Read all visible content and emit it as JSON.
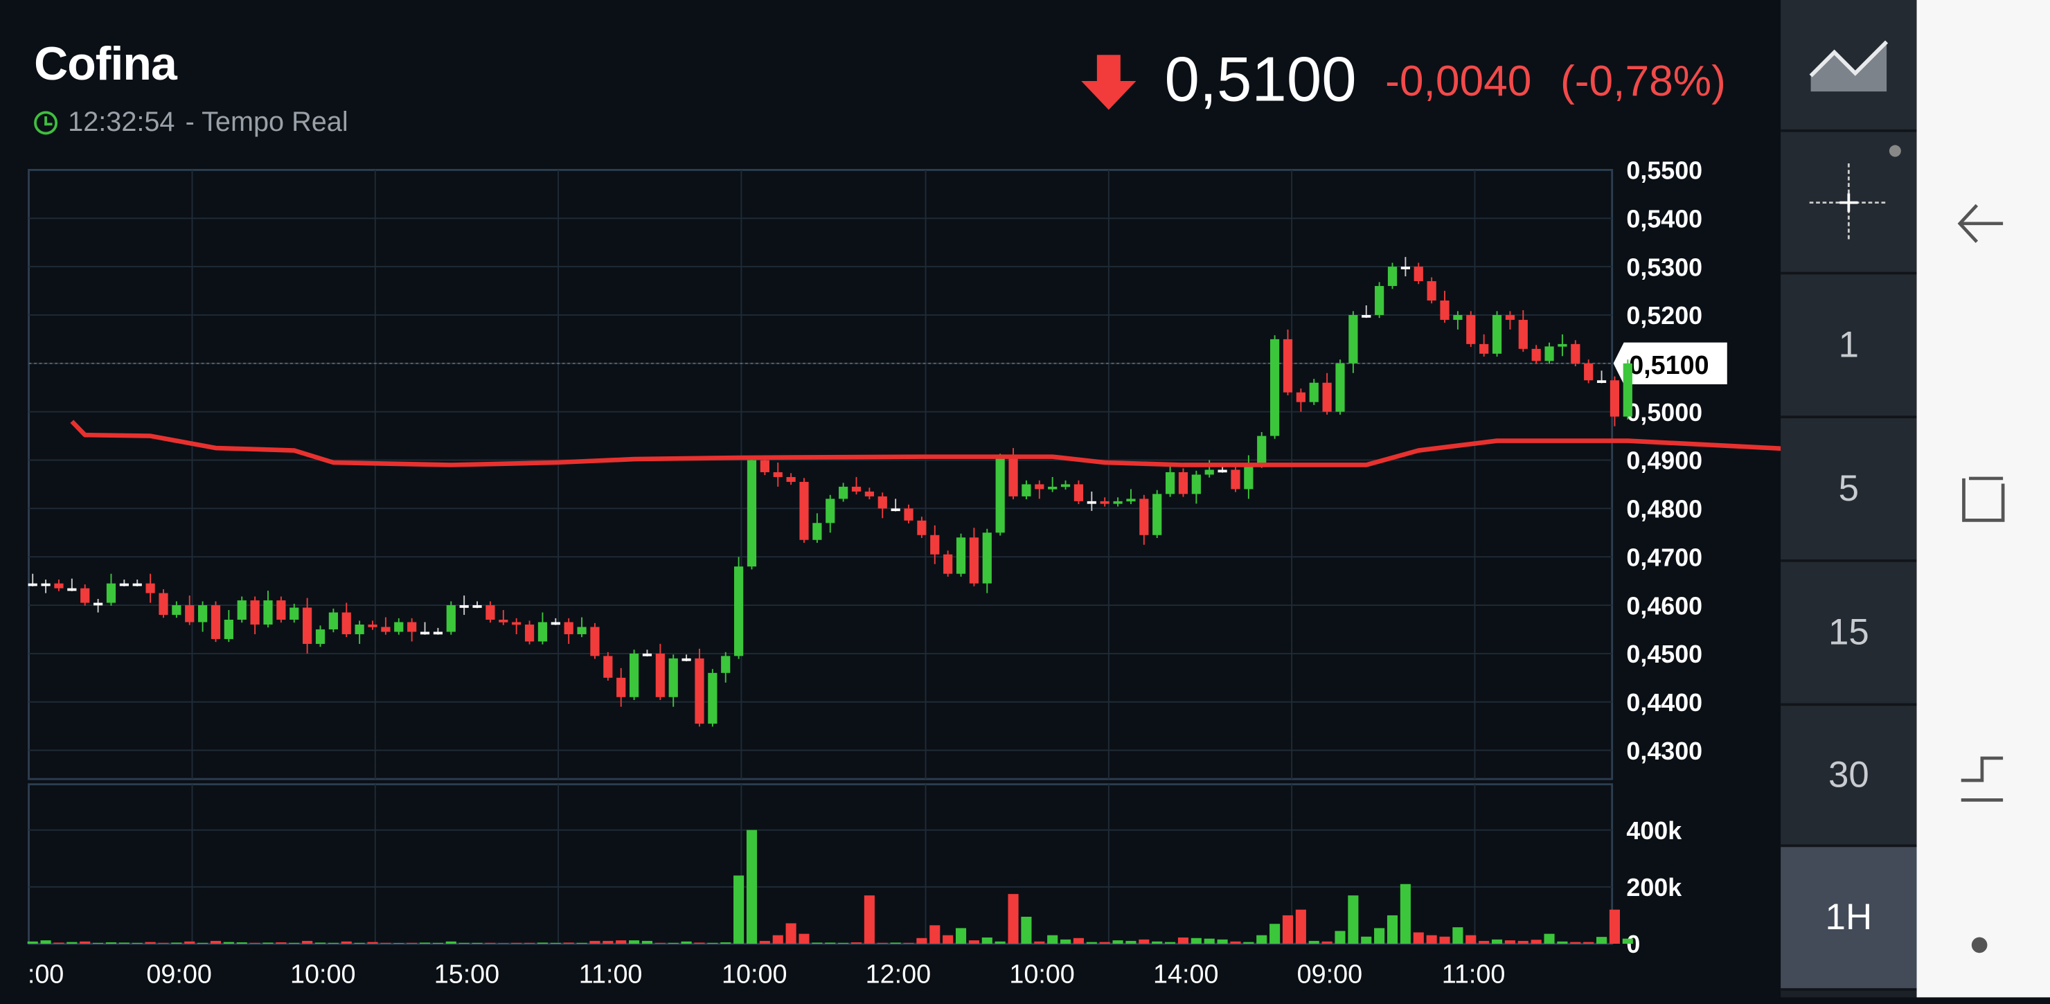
{
  "header": {
    "title": "Cofina",
    "time": "12:32:54",
    "realtime_label": "- Tempo Real",
    "price": "0,5100",
    "change": "-0,0040",
    "change_pct": "(-0,78%)",
    "direction": "down"
  },
  "colors": {
    "up": "#3cc63c",
    "down": "#f23b3b",
    "ma": "#e8312f",
    "background": "#0b1016",
    "grid": "#1f2b36"
  },
  "timeframes": [
    "1",
    "5",
    "15",
    "30",
    "1H"
  ],
  "selected_timeframe": "1H",
  "sidebar_icons": [
    "area-chart-icon",
    "crosshair-icon"
  ],
  "chart_data": [
    {
      "type": "candlestick",
      "ylim": [
        0.43,
        0.55
      ],
      "yticks": [
        "0,5500",
        "0,5400",
        "0,5300",
        "0,5200",
        "0,5100",
        "0,5000",
        "0,4900",
        "0,4800",
        "0,4700",
        "0,4600",
        "0,4500",
        "0,4400",
        "0,4300"
      ],
      "ytick_values": [
        0.55,
        0.54,
        0.53,
        0.52,
        0.51,
        0.5,
        0.49,
        0.48,
        0.47,
        0.46,
        0.45,
        0.44,
        0.43
      ],
      "last_price_label": "0,5100",
      "last_price": 0.51,
      "xticks": [
        ":00",
        "09:00",
        "10:00",
        "15:00",
        "11:00",
        "10:00",
        "12:00",
        "10:00",
        "14:00",
        "09:00",
        "11:00"
      ],
      "closes": [
        0.4645,
        0.4645,
        0.4635,
        0.4635,
        0.4605,
        0.4605,
        0.4645,
        0.4645,
        0.4645,
        0.4625,
        0.458,
        0.46,
        0.4565,
        0.46,
        0.453,
        0.457,
        0.461,
        0.456,
        0.461,
        0.457,
        0.4595,
        0.452,
        0.455,
        0.4585,
        0.454,
        0.456,
        0.4555,
        0.4545,
        0.4565,
        0.4545,
        0.4545,
        0.4545,
        0.46,
        0.46,
        0.46,
        0.457,
        0.4565,
        0.456,
        0.4525,
        0.4565,
        0.4565,
        0.454,
        0.4555,
        0.4495,
        0.445,
        0.441,
        0.45,
        0.45,
        0.441,
        0.449,
        0.449,
        0.4355,
        0.446,
        0.4495,
        0.468,
        0.49,
        0.4875,
        0.4865,
        0.4855,
        0.4735,
        0.477,
        0.482,
        0.4845,
        0.4835,
        0.4825,
        0.48,
        0.48,
        0.4775,
        0.4745,
        0.4705,
        0.4665,
        0.474,
        0.4645,
        0.475,
        0.4905,
        0.4825,
        0.485,
        0.484,
        0.4845,
        0.485,
        0.4815,
        0.4815,
        0.481,
        0.4815,
        0.482,
        0.4745,
        0.483,
        0.4875,
        0.483,
        0.487,
        0.488,
        0.488,
        0.484,
        0.489,
        0.495,
        0.515,
        0.504,
        0.502,
        0.506,
        0.5,
        0.51,
        0.52,
        0.52,
        0.526,
        0.53,
        0.53,
        0.527,
        0.523,
        0.519,
        0.52,
        0.514,
        0.512,
        0.52,
        0.519,
        0.513,
        0.5105,
        0.5135,
        0.514,
        0.51,
        0.5065,
        0.5065,
        0.499,
        0.51
      ],
      "moving_average": [
        [
          3,
          0.498
        ],
        [
          4,
          0.4952
        ],
        [
          9,
          0.495
        ],
        [
          14,
          0.4925
        ],
        [
          20,
          0.492
        ],
        [
          23,
          0.4895
        ],
        [
          32,
          0.489
        ],
        [
          40,
          0.4895
        ],
        [
          46,
          0.4902
        ],
        [
          54,
          0.4905
        ],
        [
          68,
          0.4907
        ],
        [
          78,
          0.4907
        ],
        [
          82,
          0.4895
        ],
        [
          88,
          0.489
        ],
        [
          102,
          0.489
        ],
        [
          106,
          0.492
        ],
        [
          112,
          0.494
        ],
        [
          122,
          0.494
        ],
        [
          133,
          0.4925
        ],
        [
          140,
          0.4915
        ]
      ]
    },
    {
      "type": "bar",
      "ylim": [
        0,
        460000
      ],
      "yticks": [
        "400k",
        "200k",
        "0"
      ],
      "ytick_values": [
        400000,
        200000,
        0
      ],
      "values_k": [
        8,
        12,
        4,
        6,
        8,
        3,
        5,
        4,
        3,
        6,
        3,
        4,
        8,
        3,
        10,
        6,
        5,
        3,
        4,
        5,
        3,
        10,
        4,
        3,
        8,
        3,
        6,
        3,
        2,
        3,
        4,
        3,
        8,
        3,
        3,
        3,
        2,
        3,
        3,
        4,
        3,
        4,
        3,
        10,
        10,
        12,
        12,
        10,
        3,
        3,
        8,
        4,
        3,
        5,
        240,
        400,
        10,
        30,
        72,
        35,
        4,
        4,
        3,
        5,
        170,
        3,
        4,
        3,
        20,
        65,
        30,
        55,
        12,
        22,
        8,
        175,
        95,
        8,
        30,
        15,
        20,
        6,
        6,
        12,
        10,
        15,
        8,
        6,
        22,
        20,
        18,
        15,
        8,
        6,
        30,
        70,
        100,
        120,
        10,
        8,
        45,
        170,
        25,
        55,
        100,
        210,
        40,
        30,
        25,
        58,
        30,
        10,
        15,
        12,
        10,
        14,
        35,
        8,
        6,
        6,
        24,
        120,
        18
      ],
      "bar_colors_follow": "candle_direction"
    }
  ]
}
